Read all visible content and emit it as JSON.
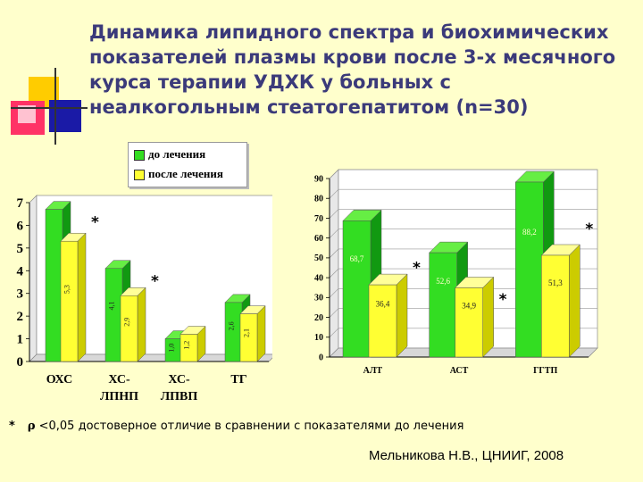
{
  "title": "Динамика липидного спектра и биохимических показателей плазмы крови после 3-х месячного курса терапии УДХК у больных с неалкогольным стеатогепатитом (n=30)",
  "colors": {
    "before": "#33dd22",
    "before_side": "#119911",
    "before_top": "#66ee44",
    "after": "#ffff33",
    "after_side": "#cccc00",
    "after_top": "#ffff99",
    "title_text": "#3b3a7a"
  },
  "legend": {
    "before": "до лечения",
    "after": "после лечения"
  },
  "chart_data": [
    {
      "type": "bar",
      "categories": [
        "ОХС",
        "ХС-ЛПНП",
        "ХС-ЛПВП",
        "ТГ"
      ],
      "category_lines": [
        [
          "ОХС"
        ],
        [
          "ХС-",
          "ЛПНП"
        ],
        [
          "ХС-",
          "ЛПВП"
        ],
        [
          "ТГ"
        ]
      ],
      "series": [
        {
          "name": "до лечения",
          "values": [
            6.7,
            4.1,
            1.0,
            2.6
          ]
        },
        {
          "name": "после лечения",
          "values": [
            5.3,
            2.9,
            1.2,
            2.1
          ]
        }
      ],
      "value_labels": [
        [
          "",
          "4,1",
          "1,0",
          "2,6"
        ],
        [
          "5,3",
          "2,9",
          "1,2",
          "2,1"
        ]
      ],
      "significant": [
        true,
        true,
        false,
        false
      ],
      "ylim": [
        0,
        7
      ],
      "yticks": [
        0,
        1,
        2,
        3,
        4,
        5,
        6,
        7
      ],
      "grid": false
    },
    {
      "type": "bar",
      "categories": [
        "АЛТ",
        "АСТ",
        "ГГТП"
      ],
      "series": [
        {
          "name": "до лечения",
          "values": [
            68.7,
            52.6,
            88.2
          ]
        },
        {
          "name": "после лечения",
          "values": [
            36.4,
            34.9,
            51.3
          ]
        }
      ],
      "value_labels": [
        [
          "68,7",
          "52,6",
          "88,2"
        ],
        [
          "36,4",
          "34,9",
          "51,3"
        ]
      ],
      "significant": [
        true,
        true,
        true
      ],
      "ylim": [
        0,
        90
      ],
      "yticks": [
        0,
        10,
        20,
        30,
        40,
        50,
        60,
        70,
        80,
        90
      ],
      "grid": true
    }
  ],
  "footnote": {
    "star": "*",
    "rho": "ρ",
    "text": "<0,05 достоверное отличие в сравнении с показателями до лечения"
  },
  "credit": "Мельникова Н.В., ЦНИИГ, 2008"
}
